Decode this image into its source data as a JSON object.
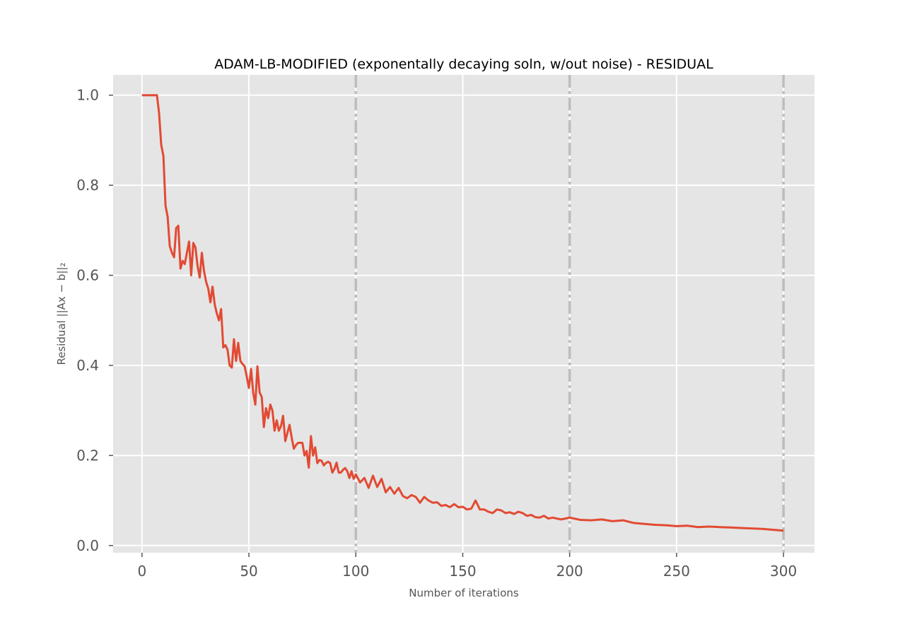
{
  "chart_data": {
    "type": "line",
    "title": "ADAM-LB-MODIFIED (exponentally decaying soln, w/out noise) - RESIDUAL",
    "xlabel": "Number of iterations",
    "ylabel": "Residual ||Ax − b||₂",
    "xlim": [
      -13.5,
      314.5
    ],
    "ylim": [
      -0.016,
      1.045
    ],
    "xticks": [
      0,
      50,
      100,
      150,
      200,
      250,
      300
    ],
    "yticks": [
      0.0,
      0.2,
      0.4,
      0.6,
      0.8,
      1.0
    ],
    "xtick_labels": [
      "0",
      "50",
      "100",
      "150",
      "200",
      "250",
      "300"
    ],
    "ytick_labels": [
      "0.0",
      "0.2",
      "0.4",
      "0.6",
      "0.8",
      "1.0"
    ],
    "grid": true,
    "vlines": [
      100,
      200,
      300
    ],
    "colors": {
      "line": "#e24a33",
      "plot_bg": "#e5e5e5",
      "grid": "#ffffff",
      "vline": "#bdbdbd"
    },
    "series": [
      {
        "x": [
          0,
          7,
          8,
          9,
          10,
          11,
          12,
          13,
          14,
          15,
          16,
          17,
          18,
          19,
          20,
          21,
          22,
          23,
          24,
          25,
          26,
          27,
          28,
          29,
          30,
          31,
          32,
          33,
          34,
          35,
          36,
          37,
          38,
          39,
          40,
          41,
          42,
          43,
          44,
          45,
          46,
          47,
          48,
          49,
          50,
          51,
          52,
          53,
          54,
          55,
          56,
          57,
          58,
          59,
          60,
          61,
          62,
          63,
          64,
          65,
          66,
          67,
          68,
          69,
          70,
          71,
          72,
          73,
          74,
          75,
          76,
          77,
          78,
          79,
          80,
          81,
          82,
          83,
          84,
          85,
          86,
          87,
          88,
          89,
          90,
          91,
          92,
          93,
          94,
          95,
          96,
          97,
          98,
          99,
          100,
          102,
          104,
          106,
          108,
          110,
          112,
          114,
          116,
          118,
          120,
          122,
          124,
          126,
          128,
          130,
          132,
          134,
          136,
          138,
          140,
          142,
          144,
          146,
          148,
          150,
          152,
          154,
          156,
          158,
          160,
          162,
          164,
          166,
          168,
          170,
          172,
          174,
          176,
          178,
          180,
          182,
          184,
          186,
          188,
          190,
          192,
          194,
          196,
          198,
          200,
          205,
          210,
          215,
          220,
          225,
          230,
          235,
          240,
          245,
          250,
          255,
          260,
          265,
          270,
          275,
          280,
          285,
          290,
          295,
          300
        ],
        "y": [
          1.0,
          1.0,
          0.96,
          0.89,
          0.865,
          0.755,
          0.73,
          0.665,
          0.65,
          0.64,
          0.705,
          0.71,
          0.615,
          0.632,
          0.625,
          0.65,
          0.675,
          0.6,
          0.672,
          0.662,
          0.62,
          0.595,
          0.65,
          0.61,
          0.585,
          0.57,
          0.54,
          0.575,
          0.535,
          0.515,
          0.5,
          0.525,
          0.44,
          0.445,
          0.435,
          0.4,
          0.395,
          0.458,
          0.41,
          0.45,
          0.41,
          0.403,
          0.398,
          0.375,
          0.35,
          0.392,
          0.34,
          0.313,
          0.398,
          0.34,
          0.33,
          0.263,
          0.305,
          0.283,
          0.313,
          0.3,
          0.255,
          0.278,
          0.255,
          0.265,
          0.288,
          0.232,
          0.25,
          0.268,
          0.24,
          0.215,
          0.223,
          0.228,
          0.228,
          0.228,
          0.2,
          0.21,
          0.173,
          0.243,
          0.2,
          0.218,
          0.183,
          0.19,
          0.188,
          0.178,
          0.183,
          0.186,
          0.183,
          0.162,
          0.17,
          0.184,
          0.162,
          0.162,
          0.168,
          0.172,
          0.165,
          0.15,
          0.165,
          0.148,
          0.158,
          0.14,
          0.15,
          0.128,
          0.155,
          0.13,
          0.148,
          0.118,
          0.13,
          0.115,
          0.128,
          0.11,
          0.105,
          0.112,
          0.108,
          0.095,
          0.108,
          0.1,
          0.095,
          0.096,
          0.088,
          0.09,
          0.085,
          0.092,
          0.085,
          0.086,
          0.08,
          0.082,
          0.1,
          0.08,
          0.08,
          0.075,
          0.072,
          0.08,
          0.078,
          0.072,
          0.074,
          0.07,
          0.075,
          0.072,
          0.066,
          0.068,
          0.063,
          0.062,
          0.066,
          0.06,
          0.062,
          0.06,
          0.058,
          0.06,
          0.062,
          0.057,
          0.056,
          0.058,
          0.054,
          0.056,
          0.05,
          0.048,
          0.046,
          0.045,
          0.043,
          0.044,
          0.041,
          0.042,
          0.041,
          0.04,
          0.039,
          0.038,
          0.037,
          0.035,
          0.033
        ]
      }
    ]
  }
}
